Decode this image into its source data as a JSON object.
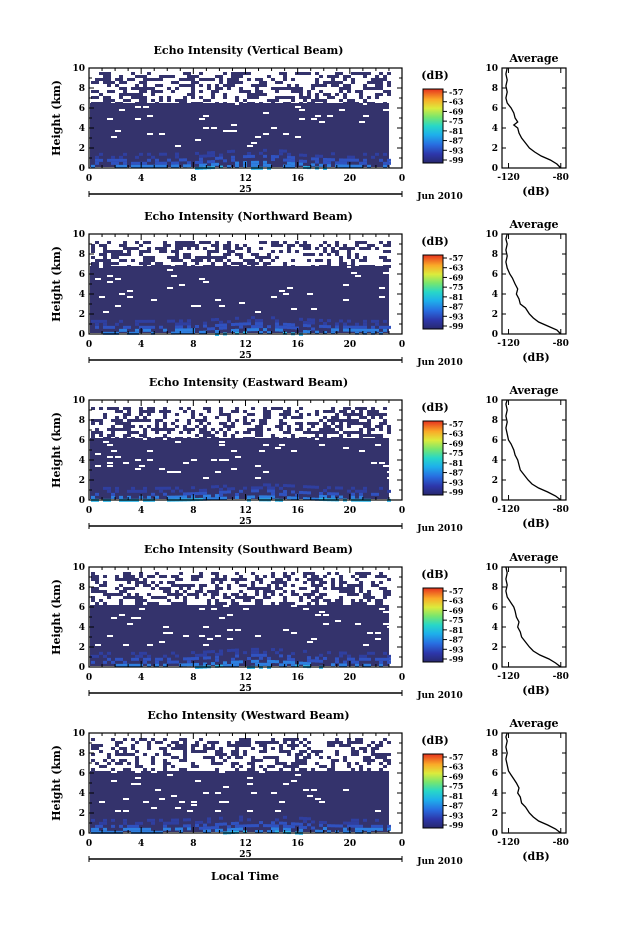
{
  "figure": {
    "xlabel": "Local Time"
  },
  "chart_data": [
    {
      "type": "heatmap",
      "title": "Echo Intensity (Vertical Beam)",
      "ylabel": "Height (km)",
      "x_ticks": [
        "0",
        "4",
        "8",
        "12",
        "16",
        "20",
        "0"
      ],
      "xlim": [
        0,
        24
      ],
      "y_ticks": [
        "0",
        "2",
        "4",
        "6",
        "8",
        "10"
      ],
      "ylim": [
        0,
        10
      ],
      "day_label": "25",
      "date_label": "Jun 2010",
      "colorbar": {
        "unit": "(dB)",
        "ticks": [
          "-57",
          "-63",
          "-69",
          "-75",
          "-81",
          "-87",
          "-93",
          "-99"
        ],
        "range": [
          -99,
          -57
        ]
      },
      "profile": {
        "title": "Average",
        "xlabel": "(dB)",
        "x_ticks": [
          "-120",
          "-80"
        ],
        "xlim": [
          -125,
          -76
        ],
        "y_ticks": [
          "0",
          "2",
          "4",
          "6",
          "8",
          "10"
        ],
        "ylim": [
          0,
          10
        ],
        "points": [
          [
            -80,
            0
          ],
          [
            -83,
            0.4
          ],
          [
            -88,
            0.8
          ],
          [
            -95,
            1.2
          ],
          [
            -100,
            1.6
          ],
          [
            -104,
            2.0
          ],
          [
            -107,
            2.5
          ],
          [
            -110,
            3.0
          ],
          [
            -112,
            3.5
          ],
          [
            -113,
            4.0
          ],
          [
            -116,
            4.3
          ],
          [
            -113,
            4.6
          ],
          [
            -115,
            5.0
          ],
          [
            -116,
            5.5
          ],
          [
            -118,
            6.0
          ],
          [
            -121,
            6.5
          ],
          [
            -122,
            7.0
          ],
          [
            -121,
            7.6
          ],
          [
            -122,
            8.2
          ],
          [
            -121,
            8.8
          ],
          [
            -122,
            9.4
          ],
          [
            -121,
            10
          ]
        ]
      },
      "echo": {
        "top_km": 6.5,
        "scatter_top_km": 9.6,
        "surface_km": 1.5
      }
    },
    {
      "type": "heatmap",
      "title": "Echo Intensity (Northward Beam)",
      "ylabel": "Height (km)",
      "x_ticks": [
        "0",
        "4",
        "8",
        "12",
        "16",
        "20",
        "0"
      ],
      "xlim": [
        0,
        24
      ],
      "y_ticks": [
        "0",
        "2",
        "4",
        "6",
        "8",
        "10"
      ],
      "ylim": [
        0,
        10
      ],
      "day_label": "25",
      "date_label": "Jun 2010",
      "colorbar": {
        "unit": "(dB)",
        "ticks": [
          "-57",
          "-63",
          "-69",
          "-75",
          "-81",
          "-87",
          "-93",
          "-99"
        ],
        "range": [
          -99,
          -57
        ]
      },
      "profile": {
        "title": "Average",
        "xlabel": "(dB)",
        "x_ticks": [
          "-120",
          "-80"
        ],
        "xlim": [
          -125,
          -76
        ],
        "y_ticks": [
          "0",
          "2",
          "4",
          "6",
          "8",
          "10"
        ],
        "ylim": [
          0,
          10
        ],
        "points": [
          [
            -80,
            0
          ],
          [
            -83,
            0.4
          ],
          [
            -90,
            0.8
          ],
          [
            -97,
            1.2
          ],
          [
            -101,
            1.6
          ],
          [
            -104,
            2.0
          ],
          [
            -107,
            2.6
          ],
          [
            -111,
            3.0
          ],
          [
            -112,
            3.5
          ],
          [
            -114,
            4.0
          ],
          [
            -113,
            4.5
          ],
          [
            -115,
            5.0
          ],
          [
            -117,
            5.6
          ],
          [
            -119,
            6.0
          ],
          [
            -121,
            6.6
          ],
          [
            -122,
            7.2
          ],
          [
            -121,
            7.8
          ],
          [
            -122,
            8.4
          ],
          [
            -121,
            9.0
          ],
          [
            -122,
            9.5
          ],
          [
            -121,
            10
          ]
        ]
      },
      "echo": {
        "top_km": 6.8,
        "scatter_top_km": 9.3,
        "surface_km": 1.4
      }
    },
    {
      "type": "heatmap",
      "title": "Echo Intensity (Eastward Beam)",
      "ylabel": "Height (km)",
      "x_ticks": [
        "0",
        "4",
        "8",
        "12",
        "16",
        "20",
        "0"
      ],
      "xlim": [
        0,
        24
      ],
      "y_ticks": [
        "0",
        "2",
        "4",
        "6",
        "8",
        "10"
      ],
      "ylim": [
        0,
        10
      ],
      "day_label": "25",
      "date_label": "Jun 2010",
      "colorbar": {
        "unit": "(dB)",
        "ticks": [
          "-57",
          "-63",
          "-69",
          "-75",
          "-81",
          "-87",
          "-93",
          "-99"
        ],
        "range": [
          -99,
          -57
        ]
      },
      "profile": {
        "title": "Average",
        "xlabel": "(dB)",
        "x_ticks": [
          "-120",
          "-80"
        ],
        "xlim": [
          -125,
          -76
        ],
        "y_ticks": [
          "0",
          "2",
          "4",
          "6",
          "8",
          "10"
        ],
        "ylim": [
          0,
          10
        ],
        "points": [
          [
            -80,
            0
          ],
          [
            -84,
            0.4
          ],
          [
            -90,
            0.8
          ],
          [
            -97,
            1.2
          ],
          [
            -102,
            1.6
          ],
          [
            -105,
            2.0
          ],
          [
            -108,
            2.5
          ],
          [
            -111,
            3.0
          ],
          [
            -112,
            3.5
          ],
          [
            -113,
            4.0
          ],
          [
            -115,
            4.5
          ],
          [
            -116,
            5.0
          ],
          [
            -118,
            5.6
          ],
          [
            -120,
            6.0
          ],
          [
            -121,
            6.6
          ],
          [
            -122,
            7.2
          ],
          [
            -121,
            7.8
          ],
          [
            -122,
            8.4
          ],
          [
            -121,
            9.0
          ],
          [
            -122,
            9.6
          ],
          [
            -121,
            10
          ]
        ]
      },
      "echo": {
        "top_km": 6.2,
        "scatter_top_km": 9.3,
        "surface_km": 1.3
      }
    },
    {
      "type": "heatmap",
      "title": "Echo Intensity (Southward Beam)",
      "ylabel": "Height (km)",
      "x_ticks": [
        "0",
        "4",
        "8",
        "12",
        "16",
        "20",
        "0"
      ],
      "xlim": [
        0,
        24
      ],
      "y_ticks": [
        "0",
        "2",
        "4",
        "6",
        "8",
        "10"
      ],
      "ylim": [
        0,
        10
      ],
      "day_label": "25",
      "date_label": "Jun 2010",
      "colorbar": {
        "unit": "(dB)",
        "ticks": [
          "-57",
          "-63",
          "-69",
          "-75",
          "-81",
          "-87",
          "-93",
          "-99"
        ],
        "range": [
          -99,
          -57
        ]
      },
      "profile": {
        "title": "Average",
        "xlabel": "(dB)",
        "x_ticks": [
          "-120",
          "-80"
        ],
        "xlim": [
          -125,
          -76
        ],
        "y_ticks": [
          "0",
          "2",
          "4",
          "6",
          "8",
          "10"
        ],
        "ylim": [
          0,
          10
        ],
        "points": [
          [
            -80,
            0
          ],
          [
            -84,
            0.4
          ],
          [
            -89,
            0.8
          ],
          [
            -96,
            1.2
          ],
          [
            -101,
            1.6
          ],
          [
            -104,
            2.0
          ],
          [
            -107,
            2.5
          ],
          [
            -110,
            3.0
          ],
          [
            -111,
            3.5
          ],
          [
            -113,
            4.0
          ],
          [
            -112,
            4.5
          ],
          [
            -114,
            5.0
          ],
          [
            -115,
            5.6
          ],
          [
            -116,
            6.0
          ],
          [
            -118,
            6.4
          ],
          [
            -121,
            7.0
          ],
          [
            -122,
            7.6
          ],
          [
            -121,
            8.2
          ],
          [
            -122,
            8.8
          ],
          [
            -121,
            9.4
          ],
          [
            -122,
            10
          ]
        ]
      },
      "echo": {
        "top_km": 6.2,
        "scatter_top_km": 9.5,
        "surface_km": 1.5
      }
    },
    {
      "type": "heatmap",
      "title": "Echo Intensity (Westward Beam)",
      "ylabel": "Height (km)",
      "x_ticks": [
        "0",
        "4",
        "8",
        "12",
        "16",
        "20",
        "0"
      ],
      "xlim": [
        0,
        24
      ],
      "y_ticks": [
        "0",
        "2",
        "4",
        "6",
        "8",
        "10"
      ],
      "ylim": [
        0,
        10
      ],
      "day_label": "25",
      "date_label": "Jun 2010",
      "colorbar": {
        "unit": "(dB)",
        "ticks": [
          "-57",
          "-63",
          "-69",
          "-75",
          "-81",
          "-87",
          "-93",
          "-99"
        ],
        "range": [
          -99,
          -57
        ]
      },
      "profile": {
        "title": "Average",
        "xlabel": "(dB)",
        "x_ticks": [
          "-120",
          "-80"
        ],
        "xlim": [
          -125,
          -76
        ],
        "y_ticks": [
          "0",
          "2",
          "4",
          "6",
          "8",
          "10"
        ],
        "ylim": [
          0,
          10
        ],
        "points": [
          [
            -80,
            0
          ],
          [
            -84,
            0.4
          ],
          [
            -90,
            0.8
          ],
          [
            -97,
            1.2
          ],
          [
            -101,
            1.6
          ],
          [
            -104,
            2.0
          ],
          [
            -107,
            2.6
          ],
          [
            -110,
            3.0
          ],
          [
            -111,
            3.6
          ],
          [
            -113,
            4.0
          ],
          [
            -112,
            4.5
          ],
          [
            -114,
            5.0
          ],
          [
            -116,
            5.4
          ],
          [
            -118,
            5.8
          ],
          [
            -120,
            6.2
          ],
          [
            -121,
            6.8
          ],
          [
            -122,
            7.4
          ],
          [
            -121,
            8.0
          ],
          [
            -122,
            8.6
          ],
          [
            -121,
            9.2
          ],
          [
            -122,
            9.6
          ],
          [
            -121,
            10
          ]
        ]
      },
      "echo": {
        "top_km": 6.2,
        "scatter_top_km": 9.5,
        "surface_km": 1.4
      }
    }
  ]
}
